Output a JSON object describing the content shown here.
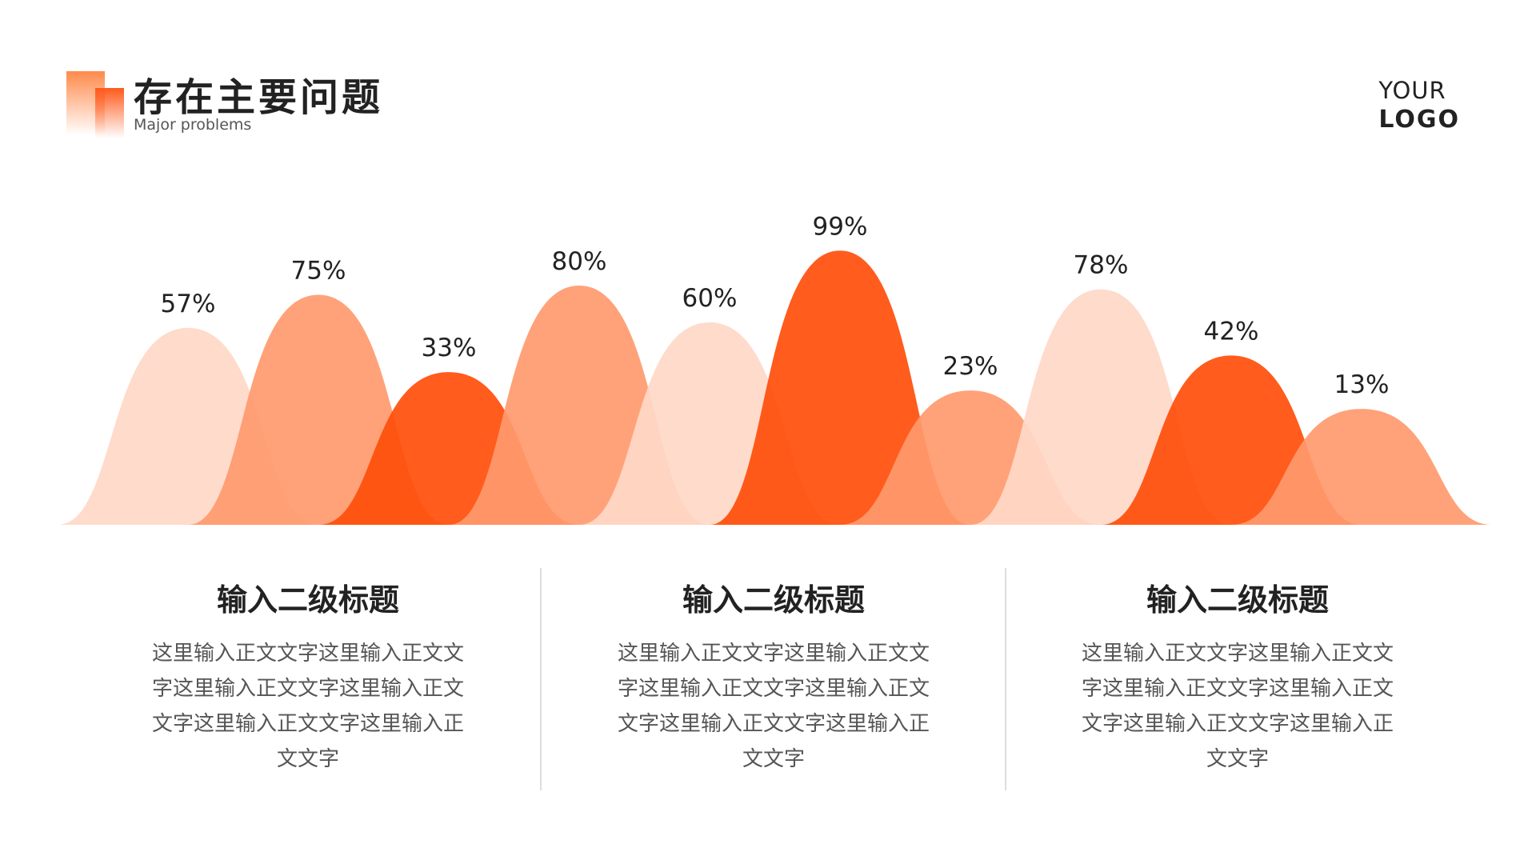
{
  "header": {
    "title": "存在主要问题",
    "subtitle": "Major problems",
    "logo_line1": "YOUR",
    "logo_line2": "LOGO"
  },
  "colors": {
    "light": "#FFD8C8",
    "medium": "#FF9A6E",
    "dark": "#FF4E0A"
  },
  "chart_data": {
    "type": "area",
    "values": [
      57,
      75,
      33,
      80,
      60,
      99,
      23,
      78,
      42,
      13
    ],
    "data_labels": [
      "57%",
      "75%",
      "33%",
      "80%",
      "60%",
      "99%",
      "23%",
      "78%",
      "42%",
      "13%"
    ],
    "ylim": [
      0,
      100
    ],
    "grid": false
  },
  "columns": [
    {
      "heading": "输入二级标题",
      "body": "这里输入正文文字这里输入正文文字这里输入正文文字这里输入正文文字这里输入正文文字这里输入正文文字"
    },
    {
      "heading": "输入二级标题",
      "body": "这里输入正文文字这里输入正文文字这里输入正文文字这里输入正文文字这里输入正文文字这里输入正文文字"
    },
    {
      "heading": "输入二级标题",
      "body": "这里输入正文文字这里输入正文文字这里输入正文文字这里输入正文文字这里输入正文文字这里输入正文文字"
    }
  ]
}
